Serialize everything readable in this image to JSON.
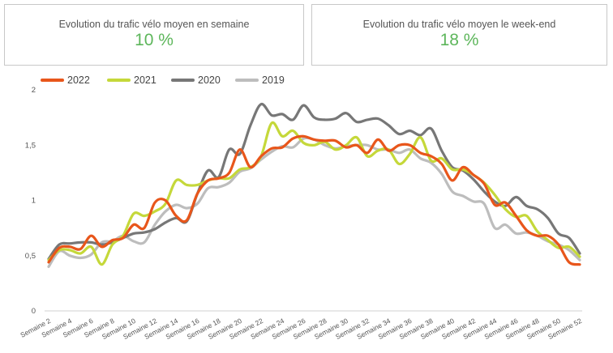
{
  "kpis": [
    {
      "label": "Evolution du trafic vélo moyen en semaine",
      "value": "10 %"
    },
    {
      "label": "Evolution du trafic vélo moyen le week-end",
      "value": "18 %"
    }
  ],
  "chart_data": {
    "type": "line",
    "title": "",
    "xlabel": "",
    "ylabel": "",
    "ylim": [
      0,
      2
    ],
    "yticks": [
      "0",
      "0,5",
      "1",
      "1,5",
      "2"
    ],
    "grid": false,
    "legend_position": "top-left",
    "x": [
      2,
      3,
      4,
      5,
      6,
      7,
      8,
      9,
      10,
      11,
      12,
      13,
      14,
      15,
      16,
      17,
      18,
      19,
      20,
      21,
      22,
      23,
      24,
      25,
      26,
      27,
      28,
      29,
      30,
      31,
      32,
      33,
      34,
      35,
      36,
      37,
      38,
      39,
      40,
      41,
      42,
      43,
      44,
      45,
      46,
      47,
      48,
      49,
      50,
      51,
      52
    ],
    "x_tick_labels": [
      "Semaine 2",
      "Semaine 4",
      "Semaine 6",
      "Semaine 8",
      "Semaine 10",
      "Semaine 12",
      "Semaine 14",
      "Semaine 16",
      "Semaine 18",
      "Semaine 20",
      "Semaine 22",
      "Semaine 24",
      "Semaine 26",
      "Semaine 28",
      "Semaine 30",
      "Semaine 32",
      "Semaine 34",
      "Semaine 36",
      "Semaine 38",
      "Semaine 40",
      "Semaine 42",
      "Semaine 44",
      "Semaine 46",
      "Semaine 48",
      "Semaine 50",
      "Semaine 52"
    ],
    "series": [
      {
        "name": "2022",
        "color": "#e8561b",
        "values": [
          0.44,
          0.57,
          0.58,
          0.56,
          0.68,
          0.58,
          0.64,
          0.66,
          0.78,
          0.75,
          0.98,
          1.0,
          0.86,
          0.82,
          1.06,
          1.18,
          1.2,
          1.25,
          1.46,
          1.3,
          1.4,
          1.47,
          1.48,
          1.56,
          1.58,
          1.55,
          1.54,
          1.54,
          1.48,
          1.5,
          1.43,
          1.55,
          1.45,
          1.5,
          1.5,
          1.43,
          1.4,
          1.33,
          1.18,
          1.3,
          1.23,
          1.15,
          0.96,
          0.98,
          0.86,
          0.73,
          0.68,
          0.68,
          0.6,
          0.44,
          0.42
        ]
      },
      {
        "name": "2021",
        "color": "#c5d83a",
        "values": [
          0.46,
          0.55,
          0.55,
          0.52,
          0.58,
          0.42,
          0.6,
          0.68,
          0.88,
          0.86,
          0.9,
          0.97,
          1.18,
          1.14,
          1.14,
          1.18,
          1.2,
          1.2,
          1.28,
          1.3,
          1.4,
          1.7,
          1.58,
          1.63,
          1.52,
          1.5,
          1.53,
          1.46,
          1.5,
          1.57,
          1.4,
          1.45,
          1.46,
          1.33,
          1.42,
          1.57,
          1.36,
          1.38,
          1.28,
          1.28,
          1.23,
          1.16,
          1.05,
          0.92,
          0.85,
          0.86,
          0.72,
          0.64,
          0.57,
          0.58,
          0.49
        ]
      },
      {
        "name": "2020",
        "color": "#777777",
        "values": [
          0.47,
          0.6,
          0.61,
          0.62,
          0.62,
          0.6,
          0.62,
          0.66,
          0.7,
          0.71,
          0.74,
          0.8,
          0.84,
          0.81,
          1.06,
          1.27,
          1.21,
          1.46,
          1.42,
          1.68,
          1.87,
          1.77,
          1.78,
          1.73,
          1.86,
          1.75,
          1.73,
          1.74,
          1.79,
          1.71,
          1.73,
          1.74,
          1.68,
          1.6,
          1.63,
          1.59,
          1.65,
          1.45,
          1.3,
          1.27,
          1.19,
          1.08,
          0.99,
          0.95,
          1.03,
          0.95,
          0.92,
          0.84,
          0.7,
          0.66,
          0.52
        ]
      },
      {
        "name": "2019",
        "color": "#bdbdbd",
        "values": [
          0.4,
          0.54,
          0.5,
          0.48,
          0.51,
          0.62,
          0.63,
          0.68,
          0.63,
          0.62,
          0.78,
          0.9,
          0.96,
          0.93,
          0.97,
          1.11,
          1.12,
          1.16,
          1.26,
          1.29,
          1.37,
          1.44,
          1.49,
          1.48,
          1.56,
          1.55,
          1.5,
          1.47,
          1.49,
          1.5,
          1.5,
          1.46,
          1.46,
          1.43,
          1.46,
          1.38,
          1.34,
          1.24,
          1.08,
          1.04,
          0.99,
          0.97,
          0.75,
          0.78,
          0.7,
          0.71,
          0.68,
          0.63,
          0.6,
          0.55,
          0.46
        ]
      }
    ]
  }
}
